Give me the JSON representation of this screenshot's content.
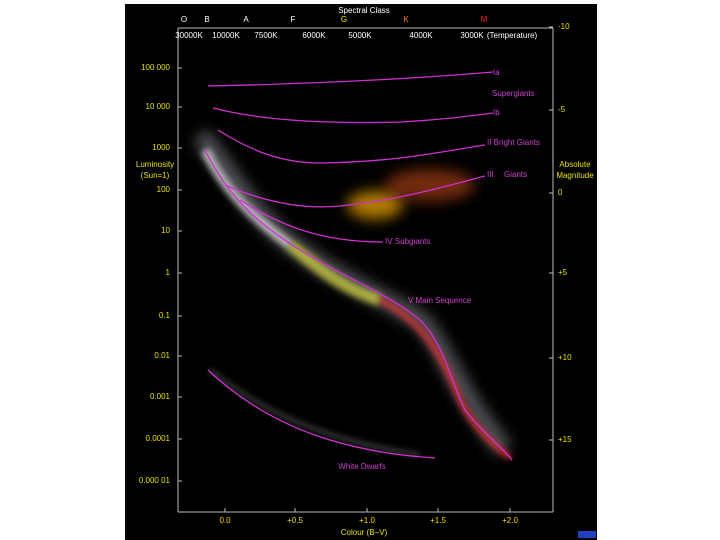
{
  "title": "Spectral Class",
  "spectral_classes": [
    {
      "label": "O",
      "color": "#ffffff"
    },
    {
      "label": "B",
      "color": "#ffffff"
    },
    {
      "label": "A",
      "color": "#ffffff"
    },
    {
      "label": "F",
      "color": "#ffffff"
    },
    {
      "label": "G",
      "color": "#ffe000"
    },
    {
      "label": "K",
      "color": "#ff8000"
    },
    {
      "label": "M",
      "color": "#ff2020"
    }
  ],
  "temperatures": [
    "30000K",
    "10000K",
    "7500K",
    "6000K",
    "5000K",
    "4000K",
    "3000K",
    "(Temperature)"
  ],
  "left_axis": {
    "title": [
      "Luminosity",
      "(Sun=1)"
    ],
    "ticks": [
      "100 000",
      "10 000",
      "1000",
      "100",
      "10",
      "1",
      "0.1",
      "0.01",
      "0.001",
      "0.0001",
      "0.000 01"
    ]
  },
  "right_axis": {
    "title": [
      "Absolute",
      "Magnitude"
    ],
    "ticks": [
      "-10",
      "-5",
      "0",
      "+5",
      "+10",
      "+15"
    ]
  },
  "bottom_axis": {
    "title": "Colour (B−V)",
    "ticks": [
      "0.0",
      "+0.5",
      "+1.0",
      "+1.5",
      "+2.0"
    ]
  },
  "regions": [
    "Ia",
    "Supergiants",
    "Ib",
    "II Bright Giants",
    "III",
    "Giants",
    "IV Subgiants",
    "V Main Sequence",
    "White Dwarfs"
  ]
}
